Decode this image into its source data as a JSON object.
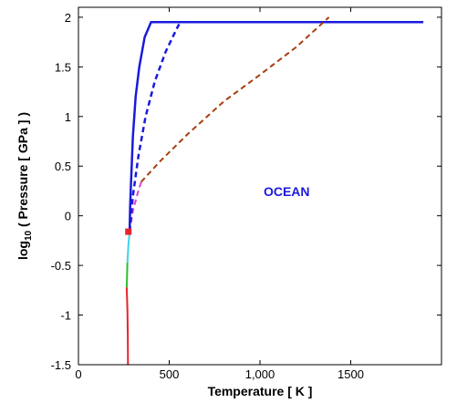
{
  "chart_data": {
    "type": "line",
    "title": "",
    "xlabel": "Temperature [ K ]",
    "ylabel_parts": {
      "base": "log",
      "sub": "10",
      "rest": " ( Pressure [ GPa ] )"
    },
    "xlim": [
      0,
      2000
    ],
    "ylim": [
      -1.5,
      2.1
    ],
    "x_ticks": [
      {
        "value": 0,
        "label": "0"
      },
      {
        "value": 500,
        "label": "500"
      },
      {
        "value": 1000,
        "label": "1,000"
      },
      {
        "value": 1500,
        "label": "1500"
      }
    ],
    "y_ticks": [
      {
        "value": 2,
        "label": "2"
      },
      {
        "value": 1.5,
        "label": "1.5"
      },
      {
        "value": 1,
        "label": "1"
      },
      {
        "value": 0.5,
        "label": "0.5"
      },
      {
        "value": 0,
        "label": "0"
      },
      {
        "value": -0.5,
        "label": "-0.5"
      },
      {
        "value": -1,
        "label": "-1"
      },
      {
        "value": -1.5,
        "label": "-1.5"
      }
    ],
    "grid": false,
    "annotations": [
      {
        "text": "OCEAN",
        "x": 1020,
        "y": 0.2,
        "color": "#1a1adc"
      }
    ],
    "markers": [
      {
        "x": 275,
        "y": -0.16,
        "color": "#e8232a",
        "shape": "square"
      }
    ],
    "series": [
      {
        "color": "#e8232a",
        "dash": "solid",
        "width": 2,
        "points": [
          [
            273,
            -1.5
          ],
          [
            272,
            -1.2
          ],
          [
            270,
            -0.95
          ],
          [
            266,
            -0.72
          ]
        ]
      },
      {
        "color": "#2ebd2e",
        "dash": "solid",
        "width": 2,
        "points": [
          [
            266,
            -0.72
          ],
          [
            268,
            -0.6
          ],
          [
            270,
            -0.47
          ]
        ]
      },
      {
        "color": "#3ad6e8",
        "dash": "solid",
        "width": 2,
        "points": [
          [
            270,
            -0.47
          ],
          [
            275,
            -0.3
          ],
          [
            282,
            -0.16
          ]
        ]
      },
      {
        "color": "#e33bd6",
        "dash": "dash",
        "width": 2,
        "points": [
          [
            282,
            -0.16
          ],
          [
            300,
            0.05
          ],
          [
            325,
            0.22
          ],
          [
            345,
            0.34
          ]
        ]
      },
      {
        "color": "#1a1adc",
        "dash": "solid",
        "width": 2.5,
        "points": [
          [
            282,
            -0.16
          ],
          [
            285,
            0.1
          ],
          [
            290,
            0.35
          ],
          [
            300,
            0.8
          ],
          [
            315,
            1.2
          ],
          [
            335,
            1.5
          ],
          [
            365,
            1.8
          ],
          [
            400,
            1.95
          ],
          [
            1900,
            1.95
          ]
        ]
      },
      {
        "color": "#1a1adc",
        "dash": "dash",
        "width": 2.5,
        "points": [
          [
            282,
            -0.16
          ],
          [
            300,
            0.2
          ],
          [
            330,
            0.6
          ],
          [
            370,
            1.0
          ],
          [
            420,
            1.35
          ],
          [
            480,
            1.65
          ],
          [
            540,
            1.88
          ],
          [
            555,
            1.93
          ]
        ]
      },
      {
        "color": "#a63f10",
        "dash": "dash",
        "width": 2,
        "points": [
          [
            345,
            0.34
          ],
          [
            450,
            0.55
          ],
          [
            600,
            0.82
          ],
          [
            800,
            1.15
          ],
          [
            1000,
            1.42
          ],
          [
            1200,
            1.7
          ],
          [
            1380,
            2.0
          ]
        ]
      }
    ]
  }
}
